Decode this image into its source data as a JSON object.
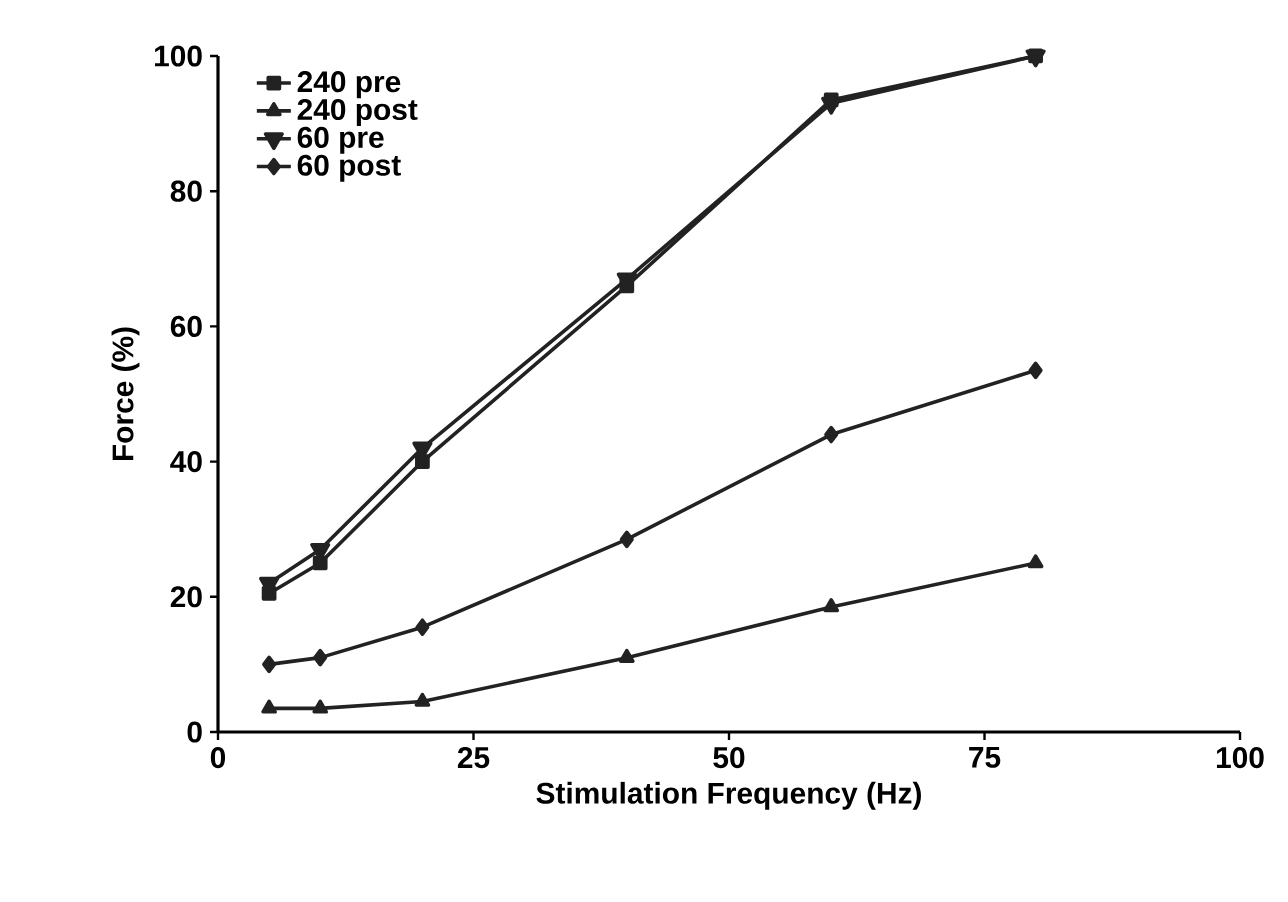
{
  "chart_data": {
    "type": "line",
    "xlabel": "Stimulation Frequency (Hz)",
    "ylabel": "Force (%)",
    "x": [
      5,
      10,
      20,
      40,
      60,
      80
    ],
    "series": [
      {
        "name": "240 pre",
        "color": "#222222",
        "marker": "square",
        "values": [
          20.5,
          25,
          40,
          66,
          93.5,
          100
        ]
      },
      {
        "name": "240 post",
        "color": "#222222",
        "marker": "triangle",
        "values": [
          3.5,
          3.5,
          4.5,
          11,
          18.5,
          25
        ]
      },
      {
        "name": "60 pre",
        "color": "#222222",
        "marker": "triangle down",
        "values": [
          22,
          27,
          42,
          67,
          93,
          100
        ]
      },
      {
        "name": "60 post",
        "color": "#222222",
        "marker": "diamond",
        "values": [
          10,
          11,
          15.5,
          28.5,
          44,
          53.5
        ]
      }
    ],
    "xlim": [
      0,
      100
    ],
    "xticks": [
      0,
      25,
      50,
      75,
      100
    ],
    "ylim": [
      0,
      100
    ],
    "yticks": [
      0,
      20,
      40,
      60,
      80,
      100
    ],
    "grid": false,
    "legend": "top left",
    "line_style": "solid"
  }
}
